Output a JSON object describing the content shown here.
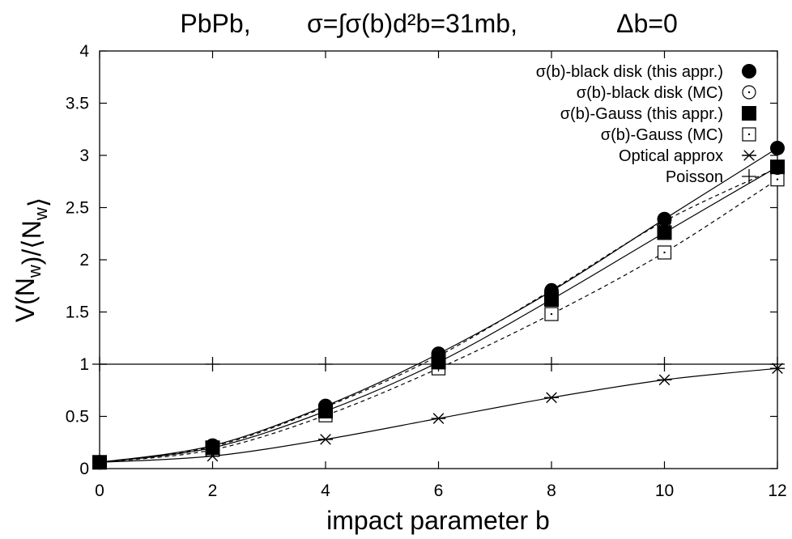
{
  "chart_data": {
    "type": "line",
    "title_parts": [
      "PbPb,",
      "σ=∫σ(b)d²b=31mb,",
      "Δb=0"
    ],
    "xlabel": "impact parameter b",
    "ylabel": "V(N_w)/⟨N_w⟩",
    "xlim": [
      0,
      12
    ],
    "ylim": [
      0,
      4
    ],
    "x_ticks": [
      "0",
      "2",
      "4",
      "6",
      "8",
      "10",
      "12"
    ],
    "y_ticks": [
      "0",
      "0.5",
      "1",
      "1.5",
      "2",
      "2.5",
      "3",
      "3.5",
      "4"
    ],
    "grid": false,
    "legend_position": "top-right",
    "series": [
      {
        "name": "σ(b)-black disk (this appr.)",
        "marker": "filled-circle",
        "line": "solid",
        "x": [
          0,
          2,
          4,
          6,
          8,
          10,
          12
        ],
        "y": [
          0.06,
          0.22,
          0.6,
          1.1,
          1.7,
          2.39,
          3.07
        ]
      },
      {
        "name": "σ(b)-black disk (MC)",
        "marker": "open-circle",
        "line": "dashed",
        "x": [
          0,
          2,
          4,
          6,
          8,
          10,
          12
        ],
        "y": [
          0.06,
          0.21,
          0.59,
          1.08,
          1.71,
          2.37,
          2.88
        ]
      },
      {
        "name": "σ(b)-Gauss (this appr.)",
        "marker": "filled-square",
        "line": "solid",
        "x": [
          0,
          2,
          4,
          6,
          8,
          10,
          12
        ],
        "y": [
          0.06,
          0.2,
          0.55,
          1.02,
          1.62,
          2.26,
          2.89
        ]
      },
      {
        "name": "σ(b)-Gauss (MC)",
        "marker": "open-square",
        "line": "dashed",
        "x": [
          0,
          2,
          4,
          6,
          8,
          10,
          12
        ],
        "y": [
          0.06,
          0.18,
          0.51,
          0.96,
          1.48,
          2.07,
          2.77
        ]
      },
      {
        "name": "Optical approx",
        "marker": "asterisk",
        "line": "solid",
        "x": [
          0,
          2,
          4,
          6,
          8,
          10,
          12
        ],
        "y": [
          0.06,
          0.12,
          0.28,
          0.48,
          0.68,
          0.85,
          0.96
        ]
      },
      {
        "name": "Poisson",
        "marker": "plus",
        "line": "solid",
        "x": [
          0,
          2,
          4,
          6,
          8,
          10,
          12
        ],
        "y": [
          1,
          1,
          1,
          1,
          1,
          1,
          1
        ]
      }
    ]
  }
}
